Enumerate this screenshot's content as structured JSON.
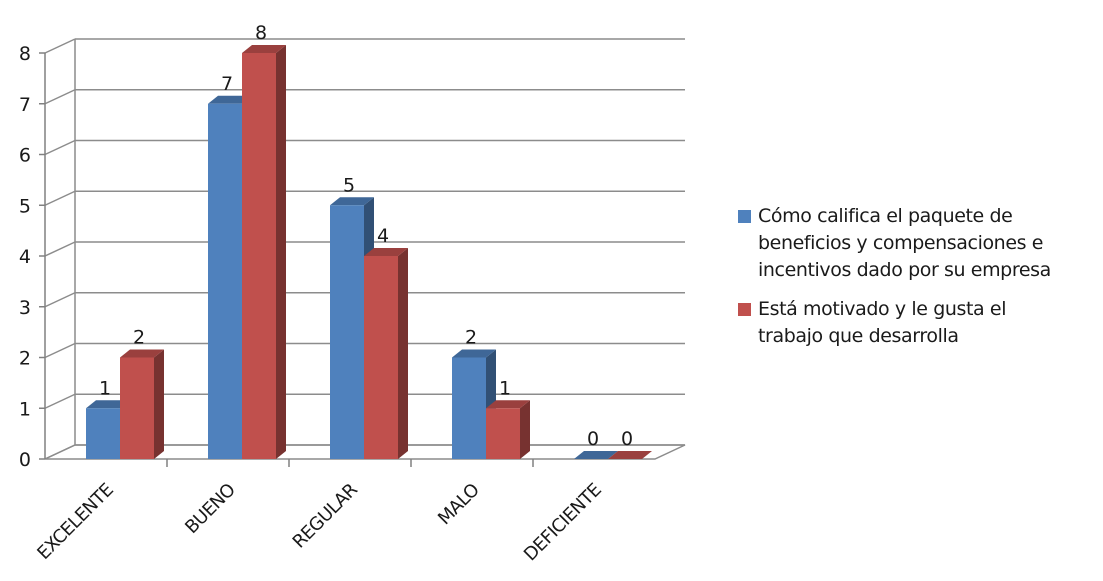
{
  "chart_data": {
    "type": "bar",
    "title": "",
    "xlabel": "",
    "ylabel": "",
    "categories": [
      "EXCELENTE",
      "BUENO",
      "REGULAR",
      "MALO",
      "DEFICIENTE"
    ],
    "ylim": [
      0,
      8
    ],
    "yticks": [
      0,
      1,
      2,
      3,
      4,
      5,
      6,
      7,
      8
    ],
    "grid": true,
    "three_d": true,
    "legend_position": "right",
    "data_labels": true,
    "series": [
      {
        "name": "Cómo califica el paquete de beneficios y compensaciones e incentivos dado por su empresa",
        "values": [
          1,
          7,
          5,
          2,
          0
        ],
        "color": "#4f81bd"
      },
      {
        "name": "Está motivado y le gusta el trabajo que desarrolla",
        "values": [
          2,
          8,
          4,
          1,
          0
        ],
        "color": "#c0504d"
      }
    ]
  },
  "legend": {
    "items": [
      {
        "text": "Cómo califica el paquete de\nbeneficios y compensaciones e\nincentivos dado por su empresa",
        "color": "#4f81bd"
      },
      {
        "text": "Está motivado y le gusta el\ntrabajo que desarrolla",
        "color": "#c0504d"
      }
    ]
  }
}
